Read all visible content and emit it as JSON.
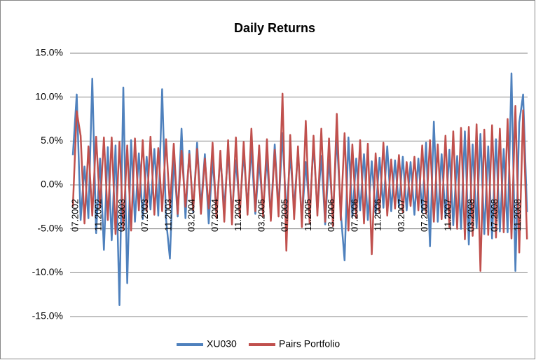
{
  "chart_data": {
    "type": "line",
    "title": "Daily Returns",
    "categories": [
      "07.2002",
      null,
      null,
      null,
      null,
      null,
      "11.2002",
      null,
      null,
      null,
      null,
      null,
      "03.2003",
      null,
      null,
      null,
      null,
      null,
      "07.2003",
      null,
      null,
      null,
      null,
      null,
      "11.2003",
      null,
      null,
      null,
      null,
      null,
      "03.2004",
      null,
      null,
      null,
      null,
      null,
      "07.2004",
      null,
      null,
      null,
      null,
      null,
      "11.2004",
      null,
      null,
      null,
      null,
      null,
      "03.2005",
      null,
      null,
      null,
      null,
      null,
      "07.2005",
      null,
      null,
      null,
      null,
      null,
      "11.2005",
      null,
      null,
      null,
      null,
      null,
      "03.2006",
      null,
      null,
      null,
      null,
      null,
      "07.2006",
      null,
      null,
      null,
      null,
      null,
      "11.2006",
      null,
      null,
      null,
      null,
      null,
      "03.2007",
      null,
      null,
      null,
      null,
      null,
      "07.2007",
      null,
      null,
      null,
      null,
      null,
      "11.2007",
      null,
      null,
      null,
      null,
      null,
      "03.2008",
      null,
      null,
      null,
      null,
      null,
      "07.2008",
      null,
      null,
      null,
      null,
      null,
      "11.2008",
      null,
      null,
      null
    ],
    "series": [
      {
        "name": "XU030",
        "color": "#4f81bd",
        "values": [
          3.4,
          10.3,
          -4.0,
          2.1,
          -3.8,
          12.1,
          -5.5,
          3.0,
          -7.4,
          4.3,
          -6.3,
          4.5,
          -13.7,
          11.1,
          -11.2,
          5.1,
          -4.2,
          3.6,
          -3.9,
          3.2,
          -2.8,
          4.1,
          -3.5,
          10.9,
          -3.9,
          -8.4,
          3.2,
          -3.6,
          6.4,
          -3.8,
          3.9,
          -3.1,
          4.8,
          -2.6,
          3.5,
          -4.4,
          2.9,
          -3.2,
          3.3,
          -2.7,
          3.8,
          -3.4,
          2.8,
          -2.9,
          3.6,
          -2.5,
          4.2,
          -3.3,
          2.7,
          -3.0,
          3.1,
          -3.7,
          4.6,
          -2.8,
          5.9,
          -3.5,
          3.4,
          -2.6,
          3.9,
          -4.1,
          2.6,
          -3.2,
          4.7,
          -3.0,
          3.3,
          -4.5,
          2.9,
          -3.4,
          5.5,
          -3.1,
          -8.6,
          5.4,
          -3.6,
          3.0,
          -2.9,
          3.5,
          -4.0,
          2.7,
          -3.3,
          3.1,
          -2.6,
          4.4,
          -3.0,
          2.8,
          -2.5,
          3.2,
          -2.9,
          2.6,
          -3.4,
          3.0,
          -3.1,
          4.8,
          -7.0,
          7.2,
          -4.2,
          3.5,
          -3.8,
          4.0,
          -4.6,
          3.3,
          -5.0,
          6.1,
          -6.8,
          4.6,
          -4.9,
          5.8,
          -5.6,
          4.4,
          -6.1,
          5.2,
          -5.3,
          4.1,
          -5.4,
          12.7,
          -9.8,
          7.1,
          10.3,
          -3.1
        ]
      },
      {
        "name": "Pairs Portfolio",
        "color": "#c0504d",
        "values": [
          -2.5,
          8.4,
          5.6,
          -4.4,
          4.4,
          -3.5,
          5.5,
          -2.6,
          5.4,
          -4.0,
          5.4,
          -5.6,
          4.9,
          -5.1,
          4.5,
          -5.2,
          5.3,
          -2.9,
          5.1,
          -3.0,
          5.5,
          -3.4,
          4.2,
          -3.0,
          5.2,
          -2.6,
          4.7,
          -3.3,
          3.9,
          -2.5,
          3.5,
          -2.9,
          4.1,
          -3.3,
          3.0,
          -2.7,
          4.8,
          -3.8,
          3.9,
          -4.2,
          5.1,
          -4.5,
          5.4,
          -3.7,
          4.9,
          -3.4,
          6.4,
          -3.0,
          4.5,
          -3.6,
          5.2,
          -4.1,
          4.0,
          -3.6,
          10.4,
          -7.5,
          5.7,
          -3.9,
          4.4,
          -4.8,
          7.3,
          -4.4,
          5.6,
          -3.5,
          6.4,
          -4.2,
          5.3,
          -4.7,
          8.1,
          -4.0,
          5.9,
          -5.2,
          4.6,
          -3.8,
          5.1,
          -4.4,
          4.7,
          -7.9,
          3.6,
          -3.2,
          4.8,
          -3.5,
          2.9,
          -2.7,
          3.4,
          -3.1,
          2.6,
          -2.4,
          3.2,
          -2.9,
          4.5,
          -3.3,
          5.1,
          -4.2,
          4.6,
          -3.9,
          5.6,
          -4.8,
          6.1,
          -5.0,
          6.5,
          -6.2,
          6.6,
          -5.8,
          6.9,
          -9.8,
          6.3,
          -5.7,
          6.8,
          -6.0,
          6.4,
          -5.4,
          7.5,
          -6.1,
          9.0,
          -7.7,
          8.5,
          -6.2
        ]
      }
    ],
    "ylim": [
      -15,
      15
    ],
    "yticks": [
      {
        "value": -15,
        "label": "-15.0%"
      },
      {
        "value": -10,
        "label": "-10.0%"
      },
      {
        "value": -5,
        "label": "-5.0%"
      },
      {
        "value": 0,
        "label": "0.0%"
      },
      {
        "value": 5,
        "label": "5.0%"
      },
      {
        "value": 10,
        "label": "10.0%"
      },
      {
        "value": 15,
        "label": "15.0%"
      }
    ],
    "grid": true,
    "legend": "bottom"
  }
}
